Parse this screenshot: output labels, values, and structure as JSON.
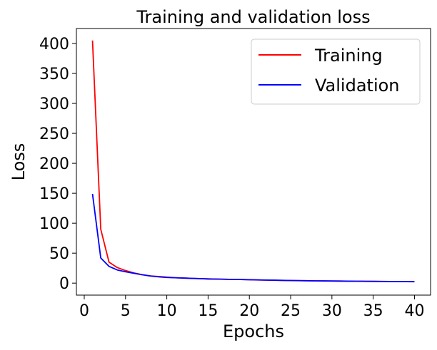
{
  "chart_data": {
    "type": "line",
    "title": "Training and validation loss",
    "xlabel": "Epochs",
    "ylabel": "Loss",
    "xlim": [
      -0.95,
      41.95
    ],
    "ylim": [
      -20,
      425
    ],
    "xticks": [
      0,
      5,
      10,
      15,
      20,
      25,
      30,
      35,
      40
    ],
    "yticks": [
      0,
      50,
      100,
      150,
      200,
      250,
      300,
      350,
      400
    ],
    "grid": false,
    "legend_position": "top-right",
    "x": [
      1,
      2,
      3,
      4,
      5,
      6,
      7,
      8,
      9,
      10,
      11,
      12,
      13,
      14,
      15,
      16,
      17,
      18,
      19,
      20,
      21,
      22,
      23,
      24,
      25,
      26,
      27,
      28,
      29,
      30,
      31,
      32,
      33,
      34,
      35,
      36,
      37,
      38,
      39,
      40
    ],
    "series": [
      {
        "name": "Training",
        "color": "#ff0000",
        "values": [
          405,
          90,
          35,
          26,
          21,
          17,
          14,
          12,
          11,
          10,
          9,
          8.5,
          8,
          7.5,
          7,
          6.8,
          6.5,
          6.2,
          6,
          5.6,
          5.3,
          5,
          4.8,
          4.5,
          4.3,
          4.1,
          3.9,
          3.7,
          3.6,
          3.5,
          3.4,
          3.2,
          3.1,
          3,
          2.9,
          2.8,
          2.7,
          2.6,
          2.5,
          2.4
        ]
      },
      {
        "name": "Validation",
        "color": "#0000ff",
        "values": [
          149,
          42,
          28,
          22,
          19,
          16.5,
          14,
          12,
          10.5,
          9.5,
          9,
          8.5,
          8,
          7.5,
          7,
          6.8,
          6.5,
          6.2,
          6,
          5.7,
          5.4,
          5.1,
          4.9,
          4.6,
          4.4,
          4.2,
          4,
          3.8,
          3.7,
          3.6,
          3.4,
          3.3,
          3.2,
          3.1,
          3,
          2.9,
          2.8,
          2.7,
          2.6,
          2.5
        ]
      }
    ]
  }
}
